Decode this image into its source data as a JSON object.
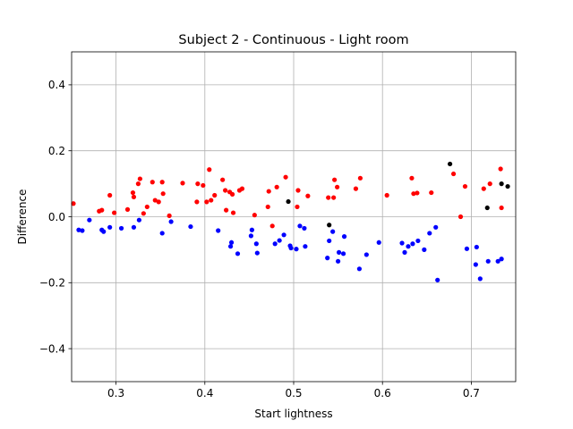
{
  "chart_data": {
    "type": "scatter",
    "title": "Subject 2 - Continuous - Light room",
    "xlabel": "Start lightness",
    "ylabel": "Difference",
    "xlim": [
      0.25,
      0.75
    ],
    "ylim": [
      -0.5,
      0.5
    ],
    "xticks": [
      0.3,
      0.4,
      0.5,
      0.6,
      0.7
    ],
    "yticks": [
      -0.4,
      -0.2,
      0.0,
      0.2,
      0.4
    ],
    "xtick_labels": [
      "0.3",
      "0.4",
      "0.5",
      "0.6",
      "0.7"
    ],
    "ytick_labels": [
      "−0.4",
      "−0.2",
      "0.0",
      "0.2",
      "0.4"
    ],
    "grid": true,
    "series": [
      {
        "color": "#ff0000",
        "points": [
          [
            0.252,
            0.04
          ],
          [
            0.281,
            0.017
          ],
          [
            0.284,
            0.02
          ],
          [
            0.293,
            0.065
          ],
          [
            0.298,
            0.012
          ],
          [
            0.313,
            0.022
          ],
          [
            0.319,
            0.073
          ],
          [
            0.32,
            0.06
          ],
          [
            0.325,
            0.1
          ],
          [
            0.327,
            0.115
          ],
          [
            0.331,
            0.01
          ],
          [
            0.335,
            0.03
          ],
          [
            0.341,
            0.105
          ],
          [
            0.344,
            0.05
          ],
          [
            0.348,
            0.045
          ],
          [
            0.352,
            0.105
          ],
          [
            0.353,
            0.07
          ],
          [
            0.36,
            0.003
          ],
          [
            0.375,
            0.102
          ],
          [
            0.391,
            0.045
          ],
          [
            0.392,
            0.1
          ],
          [
            0.398,
            0.095
          ],
          [
            0.402,
            0.045
          ],
          [
            0.405,
            0.143
          ],
          [
            0.407,
            0.05
          ],
          [
            0.411,
            0.065
          ],
          [
            0.42,
            0.112
          ],
          [
            0.423,
            0.08
          ],
          [
            0.424,
            0.02
          ],
          [
            0.428,
            0.075
          ],
          [
            0.431,
            0.068
          ],
          [
            0.432,
            0.012
          ],
          [
            0.439,
            0.08
          ],
          [
            0.442,
            0.085
          ],
          [
            0.456,
            0.005
          ],
          [
            0.471,
            0.03
          ],
          [
            0.472,
            0.077
          ],
          [
            0.476,
            -0.028
          ],
          [
            0.481,
            0.09
          ],
          [
            0.491,
            0.12
          ],
          [
            0.504,
            0.03
          ],
          [
            0.505,
            0.08
          ],
          [
            0.516,
            0.063
          ],
          [
            0.539,
            0.058
          ],
          [
            0.545,
            0.058
          ],
          [
            0.546,
            0.112
          ],
          [
            0.549,
            0.09
          ],
          [
            0.57,
            0.085
          ],
          [
            0.575,
            0.117
          ],
          [
            0.605,
            0.065
          ],
          [
            0.633,
            0.117
          ],
          [
            0.635,
            0.07
          ],
          [
            0.639,
            0.072
          ],
          [
            0.655,
            0.073
          ],
          [
            0.68,
            0.13
          ],
          [
            0.688,
            0.0
          ],
          [
            0.693,
            0.092
          ],
          [
            0.714,
            0.085
          ],
          [
            0.721,
            0.1
          ],
          [
            0.733,
            0.145
          ],
          [
            0.734,
            0.027
          ]
        ]
      },
      {
        "color": "#0000ff",
        "points": [
          [
            0.258,
            -0.04
          ],
          [
            0.262,
            -0.042
          ],
          [
            0.27,
            -0.01
          ],
          [
            0.284,
            -0.04
          ],
          [
            0.286,
            -0.045
          ],
          [
            0.293,
            -0.032
          ],
          [
            0.306,
            -0.035
          ],
          [
            0.32,
            -0.032
          ],
          [
            0.326,
            -0.01
          ],
          [
            0.352,
            -0.05
          ],
          [
            0.362,
            -0.015
          ],
          [
            0.384,
            -0.03
          ],
          [
            0.415,
            -0.042
          ],
          [
            0.429,
            -0.09
          ],
          [
            0.43,
            -0.078
          ],
          [
            0.437,
            -0.112
          ],
          [
            0.452,
            -0.058
          ],
          [
            0.453,
            -0.04
          ],
          [
            0.458,
            -0.082
          ],
          [
            0.459,
            -0.11
          ],
          [
            0.479,
            -0.082
          ],
          [
            0.484,
            -0.072
          ],
          [
            0.489,
            -0.055
          ],
          [
            0.496,
            -0.088
          ],
          [
            0.497,
            -0.095
          ],
          [
            0.503,
            -0.098
          ],
          [
            0.507,
            -0.028
          ],
          [
            0.512,
            -0.035
          ],
          [
            0.513,
            -0.09
          ],
          [
            0.538,
            -0.125
          ],
          [
            0.54,
            -0.073
          ],
          [
            0.544,
            -0.045
          ],
          [
            0.55,
            -0.135
          ],
          [
            0.551,
            -0.108
          ],
          [
            0.556,
            -0.112
          ],
          [
            0.557,
            -0.06
          ],
          [
            0.574,
            -0.158
          ],
          [
            0.582,
            -0.115
          ],
          [
            0.596,
            -0.078
          ],
          [
            0.622,
            -0.08
          ],
          [
            0.625,
            -0.108
          ],
          [
            0.629,
            -0.09
          ],
          [
            0.634,
            -0.082
          ],
          [
            0.64,
            -0.073
          ],
          [
            0.647,
            -0.1
          ],
          [
            0.653,
            -0.05
          ],
          [
            0.66,
            -0.032
          ],
          [
            0.662,
            -0.192
          ],
          [
            0.695,
            -0.097
          ],
          [
            0.705,
            -0.145
          ],
          [
            0.706,
            -0.092
          ],
          [
            0.71,
            -0.188
          ],
          [
            0.719,
            -0.135
          ],
          [
            0.73,
            -0.135
          ],
          [
            0.734,
            -0.128
          ]
        ]
      },
      {
        "color": "#000000",
        "points": [
          [
            0.494,
            0.046
          ],
          [
            0.54,
            -0.025
          ],
          [
            0.676,
            0.16
          ],
          [
            0.718,
            0.027
          ],
          [
            0.734,
            0.1
          ],
          [
            0.741,
            0.092
          ]
        ]
      }
    ]
  }
}
